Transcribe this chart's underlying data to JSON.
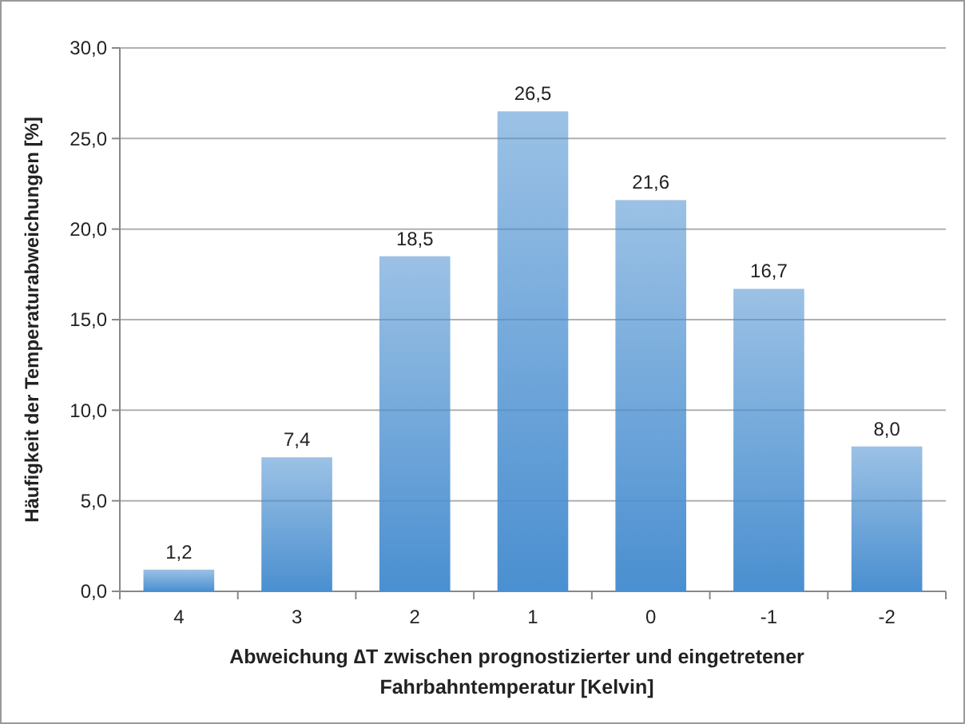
{
  "chart_data": {
    "type": "bar",
    "xlabel": "Abweichung ∆T zwischen prognostizierter und eingetretener Fahrbahntemperatur [Kelvin]",
    "ylabel": "Häufigkeit der Temperaturabweichungen [%]",
    "categories": [
      "4",
      "3",
      "2",
      "1",
      "0",
      "-1",
      "-2"
    ],
    "values": [
      1.2,
      7.4,
      18.5,
      26.5,
      21.6,
      16.7,
      8.0
    ],
    "value_labels": [
      "1,2",
      "7,4",
      "18,5",
      "26,5",
      "21,6",
      "16,7",
      "8,0"
    ],
    "color": "#4a8fd0",
    "ylim": [
      0,
      30
    ],
    "yticks": [
      {
        "value": 0,
        "label": "0,0"
      },
      {
        "value": 5,
        "label": "5,0"
      },
      {
        "value": 10,
        "label": "10,0"
      },
      {
        "value": 15,
        "label": "15,0"
      },
      {
        "value": 20,
        "label": "20,0"
      },
      {
        "value": 25,
        "label": "25,0"
      },
      {
        "value": 30,
        "label": "30,0"
      }
    ],
    "grid": "y"
  }
}
